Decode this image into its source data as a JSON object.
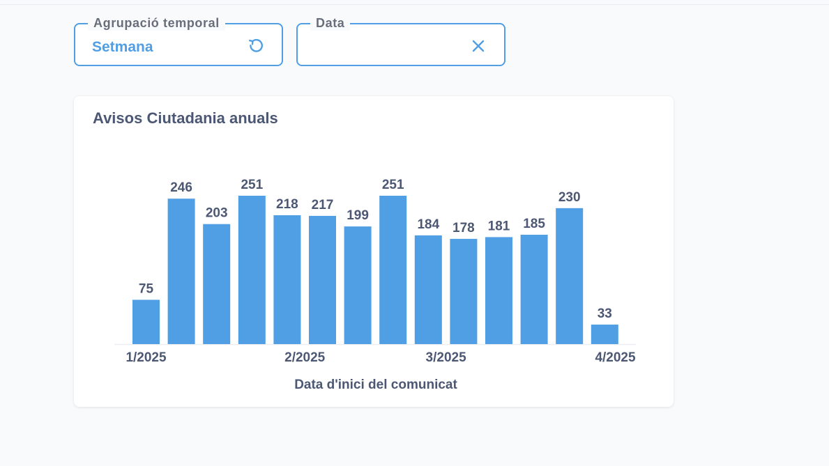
{
  "filters": {
    "grouping": {
      "label": "Agrupació temporal",
      "value": "Setmana",
      "icon": "reset-icon"
    },
    "date": {
      "label": "Data",
      "value": "",
      "icon": "close-icon"
    }
  },
  "card": {
    "title": "Avisos Ciutadania anuals"
  },
  "colors": {
    "accent": "#509ee3",
    "bar": "#509ee3",
    "text": "#4c5773"
  },
  "chart_data": {
    "type": "bar",
    "title": "Avisos Ciutadania anuals",
    "xlabel": "Data d'inici del comunicat",
    "ylabel": "",
    "values": [
      75,
      246,
      203,
      251,
      218,
      217,
      199,
      251,
      184,
      178,
      181,
      185,
      230,
      33
    ],
    "tick_labels": [
      {
        "label": "1/2025",
        "bar_index": 0
      },
      {
        "label": "2/2025",
        "bar_index": 4.5
      },
      {
        "label": "3/2025",
        "bar_index": 8.5
      },
      {
        "label": "4/2025",
        "bar_index": 13.3
      }
    ],
    "ylim": [
      0,
      260
    ],
    "grid": false,
    "legend": "none"
  }
}
